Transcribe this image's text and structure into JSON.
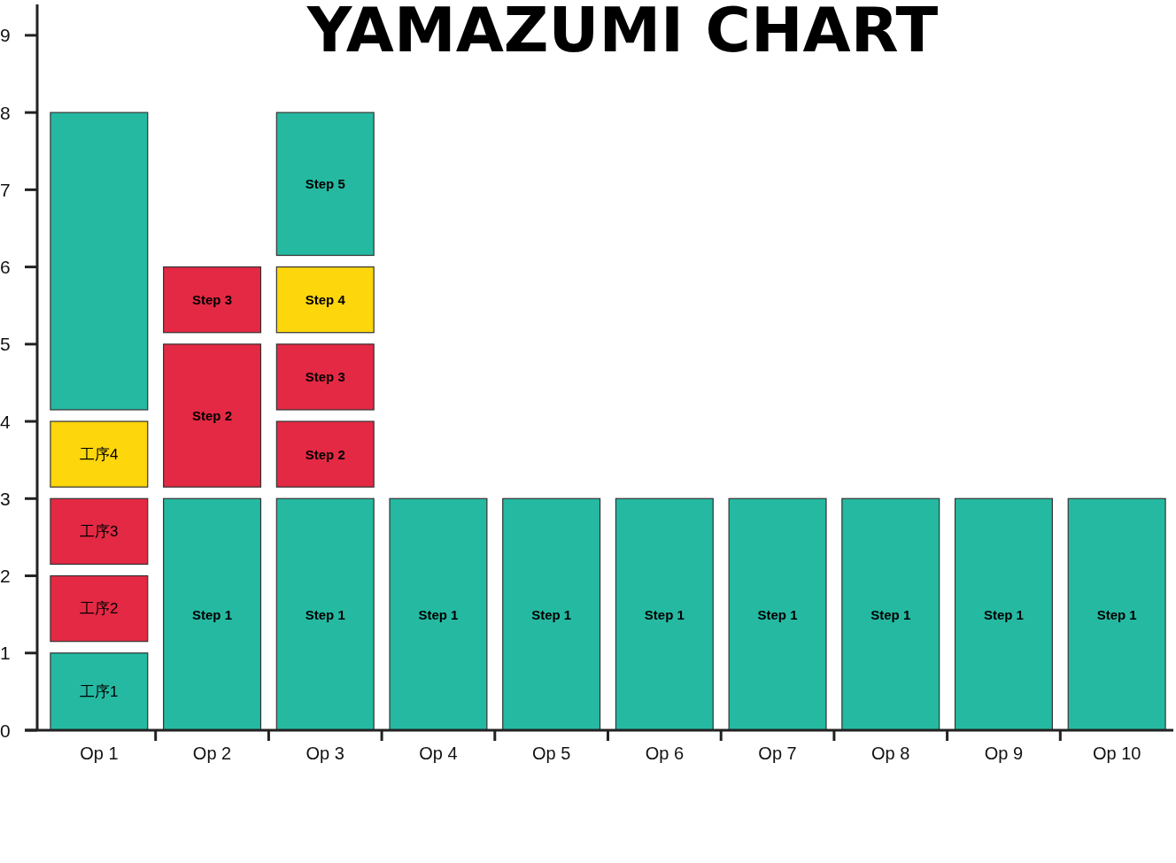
{
  "chart_data": {
    "type": "bar",
    "title": "YAMAZUMI CHART",
    "categories": [
      "Op 1",
      "Op 2",
      "Op 3",
      "Op 4",
      "Op 5",
      "Op 6",
      "Op 7",
      "Op 8",
      "Op 9",
      "Op 10"
    ],
    "ylim": [
      0,
      9.4
    ],
    "yticks": [
      0,
      1,
      2,
      3,
      4,
      5,
      6,
      7,
      8,
      9
    ],
    "series": [
      {
        "color": "#25b9a2",
        "values": [
          1,
          3,
          3,
          3,
          3,
          3,
          3,
          3,
          3,
          3
        ],
        "base": [
          0,
          0,
          0,
          0,
          0,
          0,
          0,
          0,
          0,
          0
        ],
        "value_labels": [
          "工序1",
          "Step 1",
          "Step 1",
          "Step 1",
          "Step 1",
          "Step 1",
          "Step 1",
          "Step 1",
          "Step 1",
          "Step 1"
        ]
      },
      {
        "color": "#e42944",
        "values": [
          0.85,
          1.85,
          0.85,
          null,
          null,
          null,
          null,
          null,
          null,
          null
        ],
        "base": [
          1.15,
          3.15,
          3.15,
          null,
          null,
          null,
          null,
          null,
          null,
          null
        ],
        "value_labels": [
          "工序2",
          "Step 2",
          "Step 2",
          null,
          null,
          null,
          null,
          null,
          null,
          null
        ]
      },
      {
        "color": "#e42944",
        "values": [
          0.85,
          0.85,
          0.85,
          null,
          null,
          null,
          null,
          null,
          null,
          null
        ],
        "base": [
          2.15,
          5.15,
          4.15,
          null,
          null,
          null,
          null,
          null,
          null,
          null
        ],
        "value_labels": [
          "工序3",
          "Step 3",
          "Step 3",
          null,
          null,
          null,
          null,
          null,
          null,
          null
        ]
      },
      {
        "color": "#fdd60c",
        "values": [
          0.85,
          null,
          0.85,
          null,
          null,
          null,
          null,
          null,
          null,
          null
        ],
        "base": [
          3.15,
          null,
          5.15,
          null,
          null,
          null,
          null,
          null,
          null,
          null
        ],
        "value_labels": [
          "工序4",
          null,
          "Step 4",
          null,
          null,
          null,
          null,
          null,
          null,
          null
        ]
      },
      {
        "color": "#25b9a2",
        "values": [
          3.85,
          null,
          1.85,
          null,
          null,
          null,
          null,
          null,
          null,
          null
        ],
        "base": [
          4.15,
          null,
          6.15,
          null,
          null,
          null,
          null,
          null,
          null,
          null
        ],
        "value_labels": [
          null,
          null,
          "Step 5",
          null,
          null,
          null,
          null,
          null,
          null,
          null
        ]
      }
    ]
  }
}
